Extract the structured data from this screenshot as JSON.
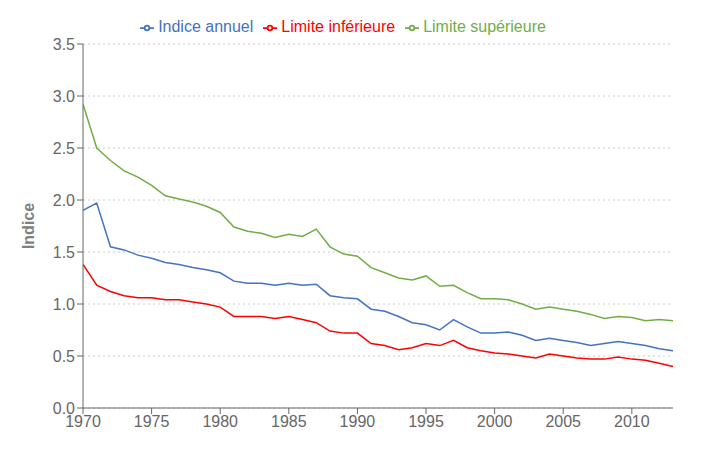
{
  "chart_data": {
    "type": "line",
    "ylabel": "Indice",
    "x": [
      1970,
      1971,
      1972,
      1973,
      1974,
      1975,
      1976,
      1977,
      1978,
      1979,
      1980,
      1981,
      1982,
      1983,
      1984,
      1985,
      1986,
      1987,
      1988,
      1989,
      1990,
      1991,
      1992,
      1993,
      1994,
      1995,
      1996,
      1997,
      1998,
      1999,
      2000,
      2001,
      2002,
      2003,
      2004,
      2005,
      2006,
      2007,
      2008,
      2009,
      2010,
      2011,
      2012,
      2013
    ],
    "series": [
      {
        "name": "Indice annuel",
        "color": "#4472C4",
        "values": [
          1.9,
          1.97,
          1.55,
          1.52,
          1.47,
          1.44,
          1.4,
          1.38,
          1.35,
          1.33,
          1.3,
          1.22,
          1.2,
          1.2,
          1.18,
          1.2,
          1.18,
          1.19,
          1.08,
          1.06,
          1.05,
          0.95,
          0.93,
          0.88,
          0.82,
          0.8,
          0.75,
          0.85,
          0.78,
          0.72,
          0.72,
          0.73,
          0.7,
          0.65,
          0.67,
          0.65,
          0.63,
          0.6,
          0.62,
          0.64,
          0.62,
          0.6,
          0.57,
          0.55
        ]
      },
      {
        "name": "Limite inférieure",
        "color": "#FF0000",
        "values": [
          1.38,
          1.18,
          1.12,
          1.08,
          1.06,
          1.06,
          1.04,
          1.04,
          1.02,
          1.0,
          0.97,
          0.88,
          0.88,
          0.88,
          0.86,
          0.88,
          0.85,
          0.82,
          0.74,
          0.72,
          0.72,
          0.62,
          0.6,
          0.56,
          0.58,
          0.62,
          0.6,
          0.65,
          0.58,
          0.55,
          0.53,
          0.52,
          0.5,
          0.48,
          0.52,
          0.5,
          0.48,
          0.47,
          0.47,
          0.49,
          0.47,
          0.46,
          0.43,
          0.4
        ]
      },
      {
        "name": "Limite supérieure",
        "color": "#70AD47",
        "values": [
          2.92,
          2.5,
          2.38,
          2.28,
          2.22,
          2.14,
          2.04,
          2.01,
          1.98,
          1.94,
          1.88,
          1.74,
          1.7,
          1.68,
          1.64,
          1.67,
          1.65,
          1.72,
          1.55,
          1.48,
          1.46,
          1.35,
          1.3,
          1.25,
          1.23,
          1.27,
          1.17,
          1.18,
          1.11,
          1.05,
          1.05,
          1.04,
          1.0,
          0.95,
          0.97,
          0.95,
          0.93,
          0.9,
          0.86,
          0.88,
          0.87,
          0.84,
          0.85,
          0.84
        ]
      }
    ],
    "xlim": [
      1970,
      2013
    ],
    "xticks": [
      1970,
      1975,
      1980,
      1985,
      1990,
      1995,
      2000,
      2005,
      2010
    ],
    "ylim": [
      0.0,
      3.5
    ],
    "yticks": [
      {
        "value": 0,
        "label": "0.0"
      },
      0.5,
      {
        "value": 1,
        "label": "1.0"
      },
      1.5,
      {
        "value": 2,
        "label": "2.0"
      },
      2.5,
      {
        "value": 3,
        "label": "3.0"
      },
      3.5
    ],
    "grid": true,
    "legend": "top"
  }
}
